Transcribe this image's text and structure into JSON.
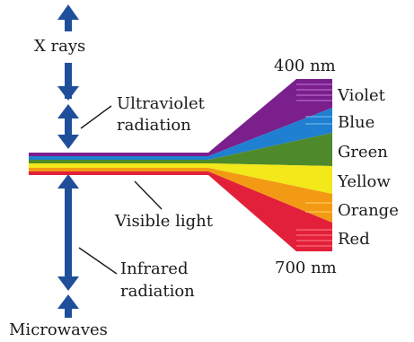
{
  "labels": {
    "xrays": "X rays",
    "uv_line1": "Ultraviolet",
    "uv_line2": "radiation",
    "visible": "Visible light",
    "ir_line1": "Infrared",
    "ir_line2": "radiation",
    "microwaves": "Microwaves",
    "nm_top": "400 nm",
    "nm_bottom": "700 nm"
  },
  "colors_list": [
    "Violet",
    "Blue",
    "Green",
    "Yellow",
    "Orange",
    "Red"
  ],
  "palette": {
    "arrow": "#1f4f9a",
    "violet": "#7a1f8c",
    "blue": "#1f7fd0",
    "green": "#4e8a2a",
    "yellow": "#f2e81a",
    "orange": "#f29a14",
    "red": "#e3203a"
  }
}
